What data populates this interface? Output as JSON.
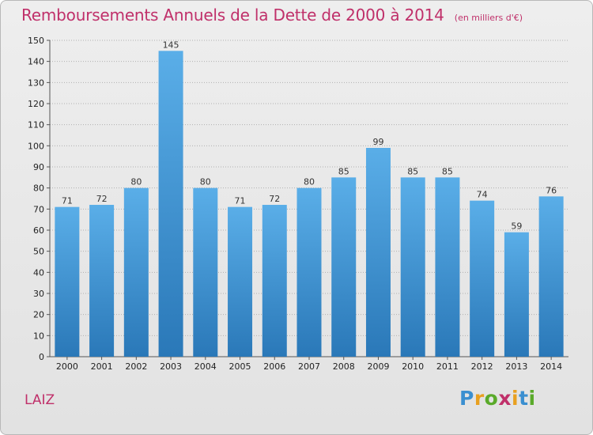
{
  "title": "Remboursements Annuels de la Dette de 2000 à 2014",
  "subtitle": "(en milliers d'€)",
  "commune": "LAIZ",
  "logo": "Proxiti",
  "colors": {
    "title": "#c0306a",
    "bar_top": "#5aaee8",
    "bar_bottom": "#2a78b8",
    "grid": "#b0b0b0"
  },
  "chart_data": {
    "type": "bar",
    "title": "Remboursements Annuels de la Dette de 2000 à 2014",
    "subtitle": "(en milliers d'€)",
    "categories": [
      "2000",
      "2001",
      "2002",
      "2003",
      "2004",
      "2005",
      "2006",
      "2007",
      "2008",
      "2009",
      "2010",
      "2011",
      "2012",
      "2013",
      "2014"
    ],
    "values": [
      71,
      72,
      80,
      145,
      80,
      71,
      72,
      80,
      85,
      99,
      85,
      85,
      74,
      59,
      76
    ],
    "ylim": [
      0,
      150
    ],
    "yticks": [
      0,
      10,
      20,
      30,
      40,
      50,
      60,
      70,
      80,
      90,
      100,
      110,
      120,
      130,
      140,
      150
    ],
    "grid": true,
    "data_labels": true
  }
}
